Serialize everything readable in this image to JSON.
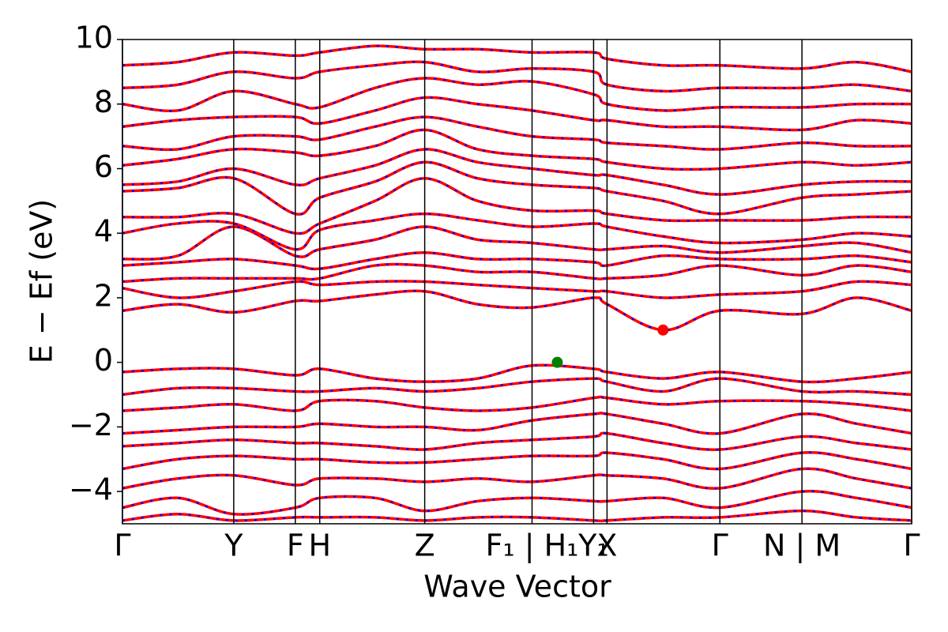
{
  "chart_data": {
    "type": "line",
    "xlabel": "Wave Vector",
    "ylabel": "E − Ef (eV)",
    "xlim": [
      0,
      1
    ],
    "ylim": [
      -5,
      10
    ],
    "yticks": [
      {
        "value": -4,
        "label": "−4"
      },
      {
        "value": -2,
        "label": "−2"
      },
      0,
      2,
      4,
      6,
      8,
      10
    ],
    "xticks": [
      {
        "value": 0,
        "label": "Γ"
      },
      {
        "value": 0.141,
        "label": "Y"
      },
      {
        "value": 0.219,
        "label": "F"
      },
      {
        "value": 0.25,
        "label": "H"
      },
      {
        "value": 0.383,
        "label": "Z"
      },
      {
        "value": 0.519,
        "label": "F₁ | H₁"
      },
      {
        "value": 0.597,
        "label": "Y₁"
      },
      {
        "value": 0.614,
        "label": "X"
      },
      {
        "value": 0.757,
        "label": "Γ"
      },
      {
        "value": 0.861,
        "label": "N | M"
      },
      {
        "value": 1,
        "label": "Γ"
      }
    ],
    "grid": true,
    "color": "#ff0000",
    "dash_color": "#0000ff",
    "x": [
      0,
      0.07,
      0.141,
      0.219,
      0.25,
      0.32,
      0.383,
      0.45,
      0.519,
      0.597,
      0.614,
      0.685,
      0.757,
      0.861,
      0.93,
      1.0
    ],
    "series": [
      {
        "values": [
          1.6,
          1.8,
          1.55,
          1.9,
          1.9,
          2.1,
          2.2,
          1.8,
          1.7,
          2.0,
          1.8,
          1.0,
          1.6,
          1.5,
          2.0,
          1.6
        ]
      },
      {
        "values": [
          2.3,
          2.0,
          2.2,
          2.5,
          2.4,
          2.5,
          2.5,
          2.4,
          2.3,
          2.2,
          2.2,
          2.0,
          2.1,
          2.2,
          2.5,
          2.4
        ]
      },
      {
        "values": [
          2.5,
          2.6,
          2.6,
          2.6,
          2.6,
          3.0,
          3.0,
          2.8,
          2.8,
          2.6,
          2.6,
          2.7,
          3.0,
          2.7,
          3.0,
          2.8
        ]
      },
      {
        "values": [
          3.0,
          3.1,
          3.2,
          3.0,
          2.9,
          3.2,
          3.4,
          3.2,
          3.2,
          3.1,
          3.0,
          3.3,
          3.2,
          3.2,
          3.3,
          3.1
        ]
      },
      {
        "values": [
          3.2,
          3.3,
          4.2,
          3.3,
          3.5,
          3.8,
          4.2,
          3.8,
          3.7,
          3.5,
          3.5,
          3.6,
          3.4,
          3.6,
          3.7,
          3.4
        ]
      },
      {
        "values": [
          4.0,
          4.3,
          4.3,
          3.5,
          4.1,
          4.4,
          4.6,
          4.4,
          4.2,
          4.3,
          4.2,
          3.9,
          3.7,
          3.8,
          4.0,
          3.9
        ]
      },
      {
        "values": [
          4.5,
          4.5,
          4.6,
          4.0,
          4.3,
          5.0,
          5.7,
          5.0,
          4.7,
          4.7,
          4.6,
          4.4,
          4.4,
          4.4,
          4.5,
          4.5
        ]
      },
      {
        "values": [
          5.3,
          5.4,
          5.7,
          4.6,
          5.1,
          5.6,
          6.2,
          5.7,
          5.5,
          5.4,
          5.3,
          5.0,
          4.6,
          5.1,
          5.2,
          5.3
        ]
      },
      {
        "values": [
          5.5,
          5.6,
          6.0,
          5.5,
          5.7,
          6.1,
          6.6,
          6.2,
          6.0,
          5.8,
          5.8,
          5.5,
          5.2,
          5.5,
          5.6,
          5.6
        ]
      },
      {
        "values": [
          6.1,
          6.3,
          6.6,
          6.5,
          6.4,
          6.7,
          7.2,
          6.6,
          6.4,
          6.3,
          6.2,
          6.0,
          6.0,
          6.2,
          6.1,
          6.2
        ]
      },
      {
        "values": [
          6.7,
          6.6,
          7.0,
          7.0,
          6.9,
          7.3,
          7.6,
          7.3,
          7.0,
          6.9,
          6.8,
          6.7,
          6.6,
          6.8,
          6.7,
          6.7
        ]
      },
      {
        "values": [
          7.3,
          7.5,
          7.6,
          7.6,
          7.4,
          7.8,
          8.2,
          8.0,
          7.8,
          7.5,
          7.5,
          7.3,
          7.3,
          7.2,
          7.5,
          7.4
        ]
      },
      {
        "values": [
          8.0,
          7.8,
          8.4,
          8.0,
          7.9,
          8.5,
          8.8,
          8.6,
          8.7,
          8.3,
          8.0,
          7.8,
          7.9,
          7.9,
          8.0,
          8.0
        ]
      },
      {
        "values": [
          8.5,
          8.6,
          9.0,
          8.8,
          9.0,
          9.2,
          9.3,
          9.0,
          9.1,
          9.0,
          8.6,
          8.4,
          8.5,
          8.5,
          8.6,
          8.4
        ]
      },
      {
        "values": [
          9.2,
          9.3,
          9.6,
          9.5,
          9.6,
          9.8,
          9.7,
          9.7,
          9.6,
          9.6,
          9.4,
          9.2,
          9.2,
          9.1,
          9.3,
          9.0
        ]
      },
      {
        "values": [
          -0.3,
          -0.2,
          -0.2,
          -0.4,
          -0.2,
          -0.5,
          -0.6,
          -0.5,
          -0.1,
          -0.2,
          -0.3,
          -0.5,
          -0.3,
          -0.6,
          -0.5,
          -0.3
        ]
      },
      {
        "values": [
          -1.0,
          -0.8,
          -0.8,
          -0.9,
          -0.9,
          -0.8,
          -0.9,
          -0.8,
          -0.6,
          -0.5,
          -0.6,
          -0.9,
          -0.5,
          -0.9,
          -0.9,
          -1.0
        ]
      },
      {
        "values": [
          -1.5,
          -1.4,
          -1.3,
          -1.5,
          -1.2,
          -1.2,
          -1.4,
          -1.5,
          -1.4,
          -1.1,
          -1.1,
          -1.3,
          -1.2,
          -1.2,
          -1.3,
          -1.5
        ]
      },
      {
        "values": [
          -2.2,
          -2.1,
          -2.0,
          -2.0,
          -1.9,
          -2.0,
          -2.0,
          -2.1,
          -1.8,
          -1.6,
          -1.6,
          -1.9,
          -2.2,
          -1.6,
          -1.9,
          -2.2
        ]
      },
      {
        "values": [
          -2.6,
          -2.5,
          -2.4,
          -2.5,
          -2.5,
          -2.6,
          -2.7,
          -2.5,
          -2.4,
          -2.3,
          -2.2,
          -2.5,
          -2.7,
          -2.3,
          -2.5,
          -2.7
        ]
      },
      {
        "values": [
          -3.3,
          -3.0,
          -2.9,
          -3.0,
          -3.0,
          -3.1,
          -3.1,
          -3.0,
          -2.9,
          -2.9,
          -2.8,
          -3.0,
          -3.3,
          -2.8,
          -3.0,
          -3.3
        ]
      },
      {
        "values": [
          -3.9,
          -3.6,
          -3.5,
          -3.8,
          -3.6,
          -3.6,
          -3.7,
          -3.6,
          -3.7,
          -3.5,
          -3.5,
          -3.6,
          -3.9,
          -3.3,
          -3.6,
          -3.9
        ]
      },
      {
        "values": [
          -4.5,
          -4.2,
          -4.7,
          -4.5,
          -4.2,
          -4.2,
          -4.6,
          -4.3,
          -4.2,
          -4.3,
          -4.3,
          -4.2,
          -4.5,
          -4.0,
          -4.2,
          -4.5
        ]
      },
      {
        "values": [
          -4.9,
          -4.7,
          -4.9,
          -4.8,
          -4.8,
          -4.8,
          -4.9,
          -4.8,
          -4.8,
          -4.9,
          -4.9,
          -4.8,
          -4.8,
          -4.6,
          -4.8,
          -4.9
        ]
      }
    ],
    "markers": [
      {
        "x": 0.551,
        "y": 0,
        "color": "#008000"
      },
      {
        "x": 0.685,
        "y": 1.0,
        "color": "#ff0000"
      }
    ]
  }
}
